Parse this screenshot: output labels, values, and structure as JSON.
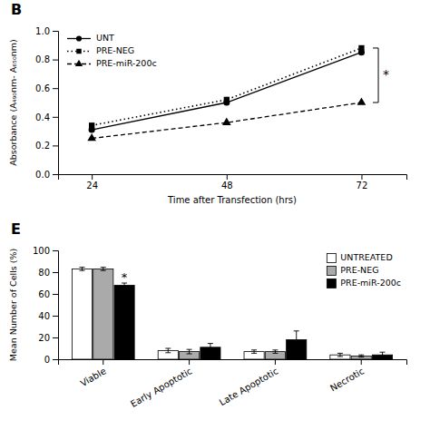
{
  "chart_data": [
    {
      "type": "line",
      "title": "B",
      "x_label": "Time after Transfection (hrs)",
      "y_label": "Absorbance (A₄₉₀nm- A₆₅₀nm)",
      "x": [
        24,
        48,
        72
      ],
      "series": [
        {
          "name": "UNT",
          "color": "black",
          "marker": "circle",
          "line_style": "solid",
          "values": [
            0.31,
            0.5,
            0.85
          ]
        },
        {
          "name": "PRE-NEG",
          "color": "black",
          "marker": "square",
          "line_style": "dotted",
          "values": [
            0.34,
            0.52,
            0.88
          ]
        },
        {
          "name": "PRE-miR-200c",
          "color": "black",
          "marker": "triangle",
          "line_style": "dashed",
          "values": [
            0.25,
            0.36,
            0.5
          ]
        }
      ],
      "xlim": [
        18,
        80
      ],
      "xticks": [
        24,
        48,
        72
      ],
      "ylim": [
        0.0,
        1.0
      ],
      "yticks": [
        {
          "value": 0.0,
          "label": "0.0"
        },
        0.2,
        0.4,
        0.6,
        0.8,
        {
          "value": 1.0,
          "label": "1.0"
        }
      ],
      "annotations": [
        {
          "text": "*",
          "x": 75,
          "y_top": 0.88,
          "y_bottom": 0.5
        }
      ],
      "legend": "upper left",
      "grid": false
    },
    {
      "type": "bar",
      "title": "E",
      "y_label": "Mean Number of Cells (%)",
      "categories": [
        "Viable",
        "Early Apoptotic",
        "Late Apoptotic",
        "Necrotic"
      ],
      "series": [
        {
          "name": "UNTREATED",
          "color": "white",
          "values": [
            83,
            8,
            7,
            4
          ],
          "errors": [
            1.5,
            2.0,
            1.5,
            1.5
          ]
        },
        {
          "name": "PRE-NEG",
          "color": "#aaaaaa",
          "values": [
            83,
            7,
            7,
            3
          ],
          "errors": [
            1.5,
            2.0,
            1.5,
            1.0
          ]
        },
        {
          "name": "PRE-miR-200c",
          "color": "black",
          "values": [
            68,
            11,
            18,
            4
          ],
          "errors": [
            2.0,
            3.5,
            8.0,
            2.5
          ]
        }
      ],
      "ylim": [
        0,
        100
      ],
      "yticks": [
        0,
        20,
        40,
        60,
        80,
        100
      ],
      "annotations": [
        {
          "text": "*",
          "category": "Viable",
          "series": "PRE-miR-200c"
        }
      ],
      "legend": "upper right",
      "grid": false
    }
  ]
}
